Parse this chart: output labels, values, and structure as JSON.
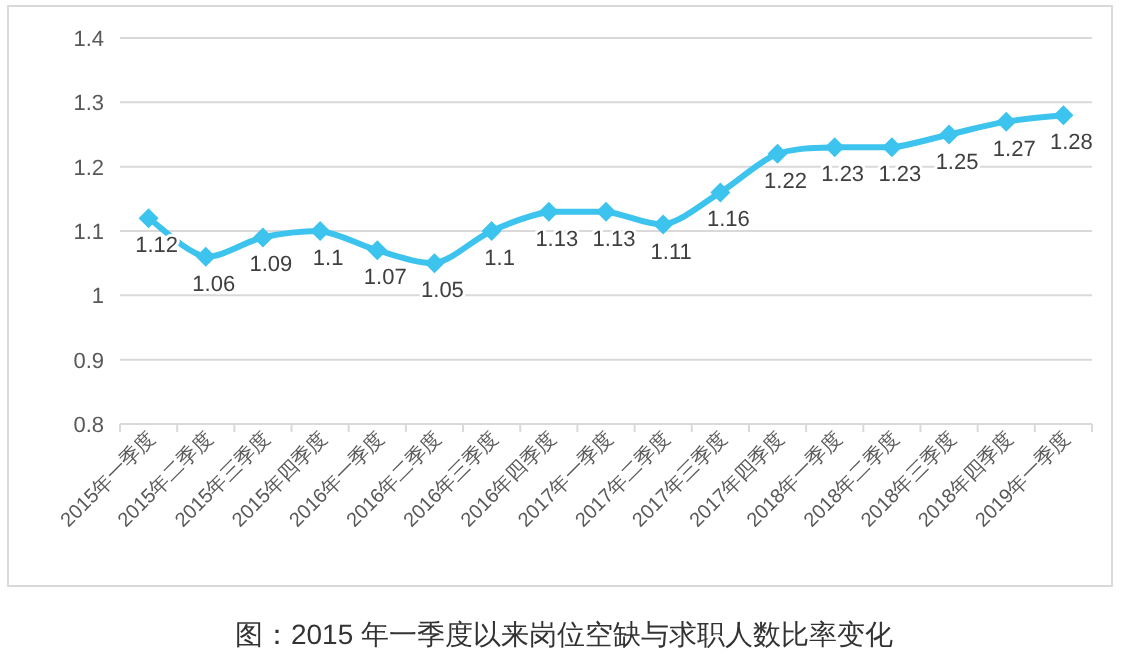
{
  "chart_data": {
    "type": "line",
    "categories": [
      "2015年一季度",
      "2015年二季度",
      "2015年三季度",
      "2015年四季度",
      "2016年一季度",
      "2016年二季度",
      "2016年三季度",
      "2016年四季度",
      "2017年一季度",
      "2017年二季度",
      "2017年三季度",
      "2017年四季度",
      "2018年一季度",
      "2018年二季度",
      "2018年三季度",
      "2018年四季度",
      "2019年一季度"
    ],
    "values": [
      1.12,
      1.06,
      1.09,
      1.1,
      1.07,
      1.05,
      1.1,
      1.13,
      1.13,
      1.11,
      1.16,
      1.22,
      1.23,
      1.23,
      1.25,
      1.27,
      1.28
    ],
    "color": "#3cc3ee",
    "ylim": [
      0.8,
      1.4
    ],
    "yticks": [
      0.8,
      0.9,
      1,
      1.1,
      1.2,
      1.3,
      1.4
    ],
    "grid": "y",
    "marker": "diamond",
    "data_labels": true,
    "annotations": [
      "图：2015 年一季度以来岗位空缺与求职人数比率变化"
    ]
  }
}
